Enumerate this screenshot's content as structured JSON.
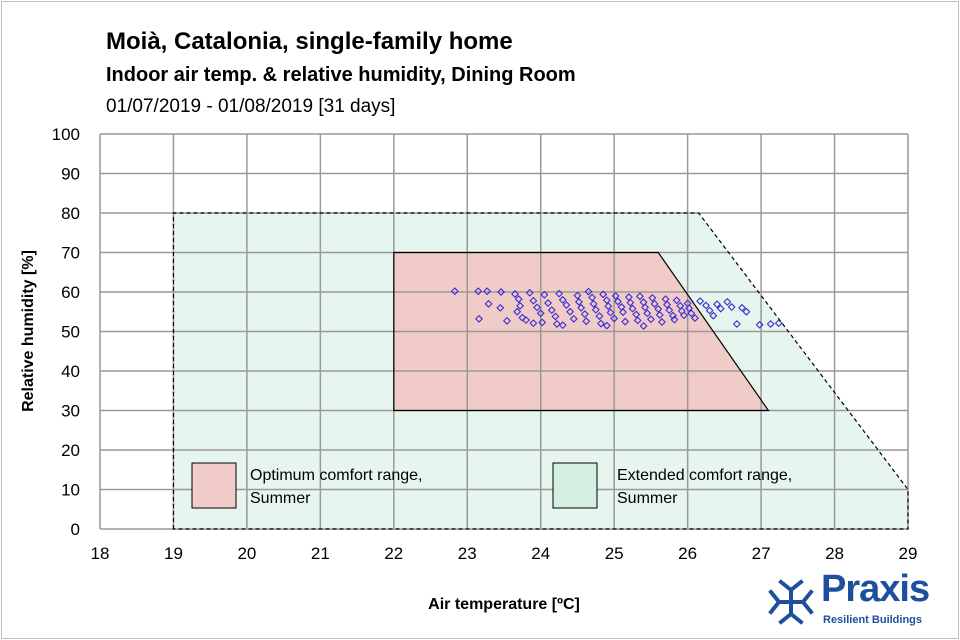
{
  "chart_data": {
    "type": "scatter",
    "title": "Moià, Catalonia, single-family home",
    "subtitle": "Indoor air temp. & relative humidity, Dining Room",
    "period": "01/07/2019 - 01/08/2019 [31 days]",
    "xlabel": "Air temperature [ºC]",
    "ylabel": "Relative humidity [%]",
    "xlim": [
      18,
      29
    ],
    "ylim": [
      0,
      100
    ],
    "xticks": [
      "18",
      "19",
      "20",
      "21",
      "22",
      "23",
      "24",
      "25",
      "26",
      "27",
      "28",
      "29"
    ],
    "yticks": [
      "0",
      "10",
      "20",
      "30",
      "40",
      "50",
      "60",
      "70",
      "80",
      "90",
      "100"
    ],
    "grid": true,
    "marker": "diamond-open",
    "marker_color": "#3a2fd0",
    "regions": [
      {
        "name": "Extended comfort range, Summer",
        "name_lines": [
          "Extended comfort range,",
          "Summer"
        ],
        "color": "#e6f5ee",
        "border": "dashed",
        "polygon": [
          [
            19,
            0
          ],
          [
            19,
            80
          ],
          [
            26.15,
            80
          ],
          [
            29,
            10
          ],
          [
            29,
            0
          ]
        ]
      },
      {
        "name": "Optimum comfort range, Summer",
        "name_lines": [
          "Optimum comfort range,",
          "Summer"
        ],
        "color": "#f0cbc8",
        "border": "solid",
        "polygon": [
          [
            22,
            30
          ],
          [
            22,
            70
          ],
          [
            25.6,
            70
          ],
          [
            27.1,
            30
          ]
        ]
      }
    ],
    "points": [
      [
        22.83,
        60.2
      ],
      [
        23.15,
        60.2
      ],
      [
        23.27,
        60.2
      ],
      [
        23.46,
        60.0
      ],
      [
        23.29,
        57.0
      ],
      [
        23.45,
        56.0
      ],
      [
        23.16,
        53.2
      ],
      [
        23.54,
        52.7
      ],
      [
        23.65,
        59.5
      ],
      [
        23.7,
        58.2
      ],
      [
        23.72,
        56.5
      ],
      [
        23.68,
        55.0
      ],
      [
        23.75,
        53.5
      ],
      [
        23.8,
        52.9
      ],
      [
        23.85,
        59.8
      ],
      [
        23.9,
        57.8
      ],
      [
        23.95,
        56.1
      ],
      [
        24.0,
        54.6
      ],
      [
        24.02,
        52.3
      ],
      [
        24.05,
        59.3
      ],
      [
        24.1,
        57.2
      ],
      [
        24.15,
        55.4
      ],
      [
        24.2,
        53.8
      ],
      [
        24.22,
        51.9
      ],
      [
        24.25,
        59.6
      ],
      [
        24.3,
        58.0
      ],
      [
        24.35,
        56.7
      ],
      [
        24.4,
        55.0
      ],
      [
        24.45,
        53.2
      ],
      [
        24.5,
        59.1
      ],
      [
        24.52,
        57.5
      ],
      [
        24.55,
        56.0
      ],
      [
        24.6,
        54.4
      ],
      [
        24.62,
        52.6
      ],
      [
        24.65,
        60.1
      ],
      [
        24.7,
        58.6
      ],
      [
        24.72,
        57.0
      ],
      [
        24.75,
        55.5
      ],
      [
        24.8,
        53.9
      ],
      [
        24.82,
        52.0
      ],
      [
        24.85,
        59.4
      ],
      [
        24.9,
        57.9
      ],
      [
        24.92,
        56.4
      ],
      [
        24.95,
        54.8
      ],
      [
        25.0,
        53.3
      ],
      [
        25.02,
        59.0
      ],
      [
        25.05,
        57.6
      ],
      [
        25.1,
        56.2
      ],
      [
        25.12,
        54.9
      ],
      [
        25.15,
        52.5
      ],
      [
        25.2,
        58.7
      ],
      [
        25.22,
        57.3
      ],
      [
        25.25,
        55.8
      ],
      [
        25.3,
        54.3
      ],
      [
        25.32,
        52.8
      ],
      [
        25.35,
        58.9
      ],
      [
        25.4,
        57.4
      ],
      [
        25.42,
        56.1
      ],
      [
        25.45,
        54.6
      ],
      [
        25.5,
        53.1
      ],
      [
        25.52,
        58.5
      ],
      [
        25.55,
        57.0
      ],
      [
        25.6,
        55.7
      ],
      [
        25.62,
        54.2
      ],
      [
        25.65,
        52.4
      ],
      [
        25.7,
        58.2
      ],
      [
        25.72,
        56.8
      ],
      [
        25.75,
        55.4
      ],
      [
        25.8,
        54.0
      ],
      [
        25.82,
        53.0
      ],
      [
        25.85,
        57.9
      ],
      [
        25.9,
        56.5
      ],
      [
        25.92,
        55.2
      ],
      [
        25.95,
        54.1
      ],
      [
        26.0,
        57.1
      ],
      [
        26.02,
        55.9
      ],
      [
        26.05,
        54.6
      ],
      [
        26.1,
        53.4
      ],
      [
        26.17,
        57.7
      ],
      [
        26.25,
        56.6
      ],
      [
        26.3,
        55.3
      ],
      [
        26.35,
        54.0
      ],
      [
        26.4,
        56.9
      ],
      [
        26.45,
        55.8
      ],
      [
        26.54,
        57.5
      ],
      [
        26.6,
        56.2
      ],
      [
        26.67,
        51.9
      ],
      [
        26.74,
        56.0
      ],
      [
        26.8,
        55.0
      ],
      [
        26.98,
        51.7
      ],
      [
        27.13,
        51.9
      ],
      [
        27.24,
        52.1
      ],
      [
        24.3,
        51.6
      ],
      [
        24.9,
        51.5
      ],
      [
        25.4,
        51.4
      ],
      [
        23.9,
        52.1
      ]
    ]
  }
}
